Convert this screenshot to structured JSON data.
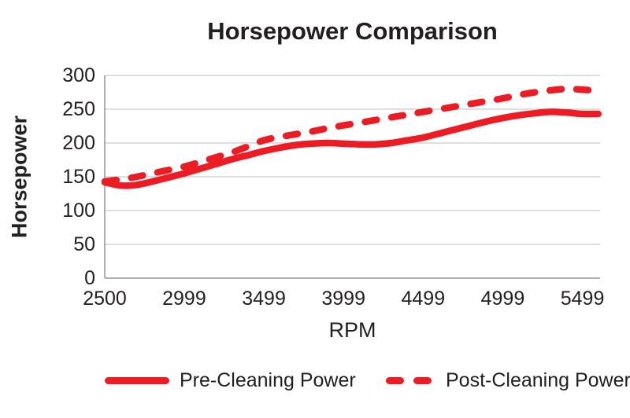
{
  "colors": {
    "line_red": "#EC1C24",
    "text": "#231F20",
    "gridline": "#C9CACC",
    "axis": "#939598"
  },
  "chart_data": {
    "type": "line",
    "title": "Horsepower Comparison",
    "xlabel": "RPM",
    "ylabel": "Horsepower",
    "ylim": [
      0,
      300
    ],
    "y_ticks": [
      0,
      50,
      100,
      150,
      200,
      250,
      300
    ],
    "x_tick_labels": [
      "2500",
      "2999",
      "3499",
      "3999",
      "4499",
      "4999",
      "5499"
    ],
    "x_tick_rpm": [
      2500,
      2999,
      3499,
      3999,
      4499,
      4999,
      5499
    ],
    "x_range": [
      2500,
      5610
    ],
    "grid": "horizontal-only",
    "legend_position": "bottom",
    "line_color": "#EC1C24",
    "rpm": [
      2500,
      2600,
      2700,
      2800,
      2900,
      2999,
      3100,
      3200,
      3300,
      3400,
      3499,
      3600,
      3700,
      3800,
      3900,
      3999,
      4100,
      4200,
      4300,
      4400,
      4499,
      4600,
      4700,
      4800,
      4900,
      4999,
      5100,
      5200,
      5300,
      5400,
      5499,
      5599
    ],
    "series": [
      {
        "name": "Pre-Cleaning Power",
        "style": "solid",
        "values": [
          142,
          137,
          138,
          143,
          149,
          155,
          162,
          169,
          176,
          182,
          188,
          193,
          197,
          199,
          200,
          199,
          198,
          198,
          200,
          204,
          208,
          214,
          220,
          226,
          232,
          237,
          241,
          244,
          246,
          245,
          243,
          243
        ]
      },
      {
        "name": "Post-Cleaning Power",
        "style": "dashed",
        "values": [
          143,
          146,
          150,
          155,
          160,
          165,
          172,
          179,
          186,
          195,
          204,
          209,
          213,
          217,
          222,
          226,
          230,
          234,
          238,
          242,
          246,
          250,
          254,
          258,
          262,
          266,
          271,
          275,
          278,
          280,
          279,
          277
        ]
      }
    ]
  }
}
